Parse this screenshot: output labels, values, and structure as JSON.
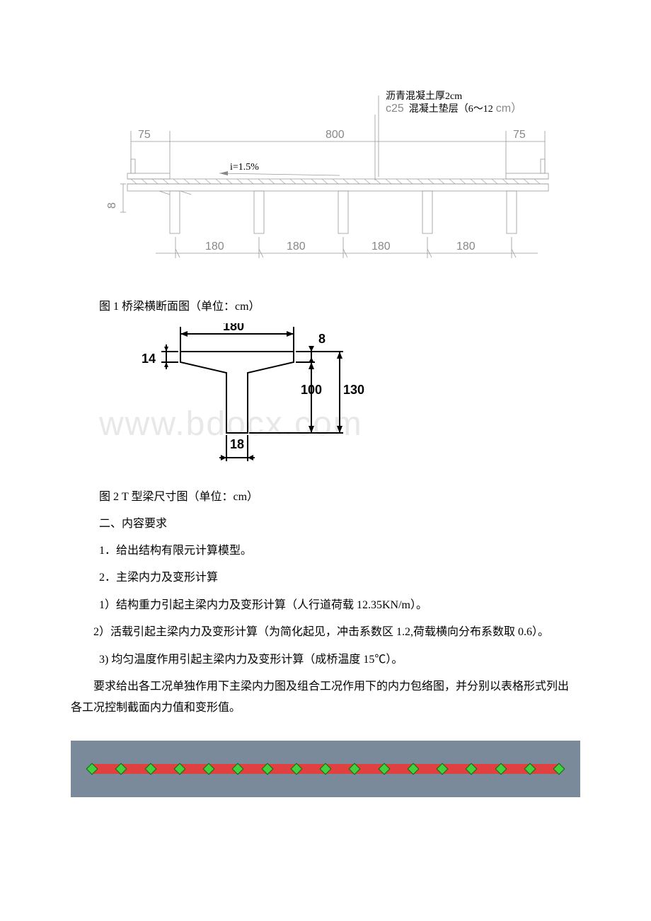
{
  "figure1": {
    "annotation_line1": "沥青混凝土厚2cm",
    "annotation_line2": "c25 混凝土垫层（6～12cm）",
    "annotation_line2_prefix": "c25",
    "annotation_line2_main": "混凝土垫层（6～12",
    "annotation_line2_suffix": "cm）",
    "total_width": "800",
    "left_edge": "75",
    "right_edge": "75",
    "slope": "i=1.5%",
    "left_height": "8",
    "spacing": [
      "180",
      "180",
      "180",
      "180"
    ],
    "colors": {
      "line": "#999999",
      "text_dim": "#888888",
      "text_black": "#000000"
    }
  },
  "caption1": "图 1 桥梁横断面图（单位：cm）",
  "figure2": {
    "width_top": "180",
    "flange_thk": "14",
    "top_thk": "8",
    "web_height": "100",
    "total_height": "130",
    "web_width": "18"
  },
  "caption2": "图 2 T 型梁尺寸图（单位：cm）",
  "section2_title": "二、内容要求",
  "item1": "1．给出结构有限元计算模型。",
  "item2": "2．主梁内力及变形计算",
  "item2_1": "1）结构重力引起主梁内力及变形计算（人行道荷载 12.35KN/m）。",
  "item2_2": "2）活载引起主梁内力及变形计算（为简化起见，冲击系数区 1.2,荷载横向分布系数取 0.6）。",
  "item2_3": "3) 均匀温度作用引起主梁内力及变形计算（成桥温度 15℃）。",
  "requirement": "要求给出各工况单独作用下主梁内力图及组合工况作用下的内力包络图，并分别以表格形式列出各工况控制截面内力值和变形值。",
  "watermark": "www.bdocx.com",
  "model": {
    "background": "#7a8a9a",
    "seg_color": "#e04040",
    "node_color": "#40d040",
    "node_count": 17,
    "seg_count": 16
  }
}
